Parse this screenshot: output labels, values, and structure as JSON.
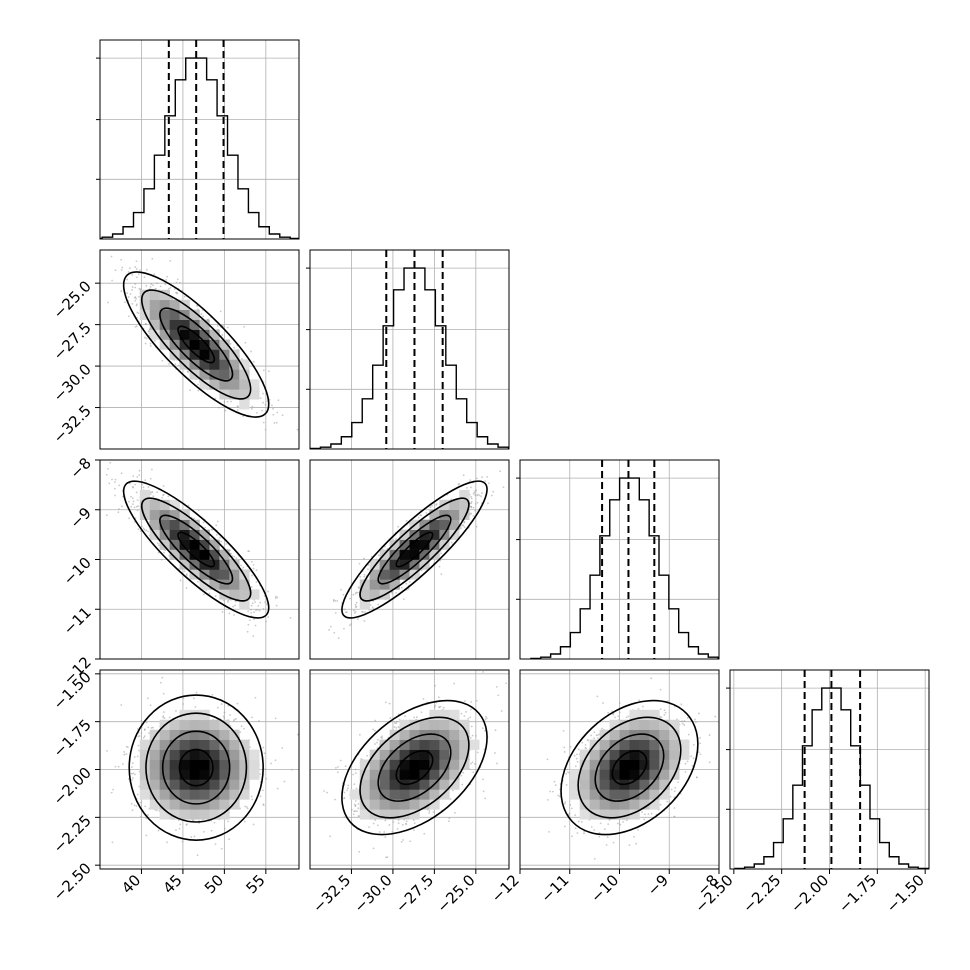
{
  "chart_data": {
    "type": "corner",
    "colors": {
      "line": "#000000",
      "grid": "#b0b0b0",
      "points": "#9e9e9e"
    },
    "params": [
      {
        "range": [
          35,
          59
        ],
        "ticks": [
          "40",
          "45",
          "50",
          "55"
        ],
        "tickvals": [
          40,
          45,
          50,
          55
        ],
        "mean": 46.6,
        "sd": 3.5,
        "quantiles": [
          43.3,
          46.6,
          49.9
        ]
      },
      {
        "range": [
          -35.0,
          -23.0
        ],
        "ticks": [
          "−32.5",
          "−30.0",
          "−27.5",
          "−25.0"
        ],
        "tickvals": [
          -32.5,
          -30.0,
          -27.5,
          -25.0
        ],
        "mean": -28.7,
        "sd": 1.75,
        "quantiles": [
          -30.4,
          -28.7,
          -27.0
        ]
      },
      {
        "range": [
          -12,
          -8
        ],
        "ticks": [
          "−12",
          "−11",
          "−10",
          "−9",
          "−8"
        ],
        "tickvals": [
          -12,
          -11,
          -10,
          -9,
          -8
        ],
        "mean": -9.8,
        "sd": 0.55,
        "quantiles": [
          -10.35,
          -9.82,
          -9.3
        ]
      },
      {
        "range": [
          -2.52,
          -1.48
        ],
        "ticks": [
          "−2.50",
          "−2.25",
          "−2.00",
          "−1.75",
          "−1.50"
        ],
        "tickvals": [
          -2.5,
          -2.25,
          -2.0,
          -1.75,
          -1.5
        ],
        "mean": -1.99,
        "sd": 0.14,
        "quantiles": [
          -2.13,
          -1.99,
          -1.84
        ]
      }
    ],
    "correlations": [
      [
        1.0,
        -0.82,
        -0.85,
        0.0
      ],
      [
        -0.82,
        1.0,
        0.88,
        0.45
      ],
      [
        -0.85,
        0.88,
        1.0,
        0.35
      ],
      [
        0.0,
        0.45,
        0.35,
        1.0
      ]
    ],
    "histogram_bins": 20,
    "contour_levels_sigma": [
      0.5,
      1.0,
      1.5,
      2.0
    ],
    "title": "",
    "labels": [
      "",
      "",
      "",
      ""
    ]
  }
}
